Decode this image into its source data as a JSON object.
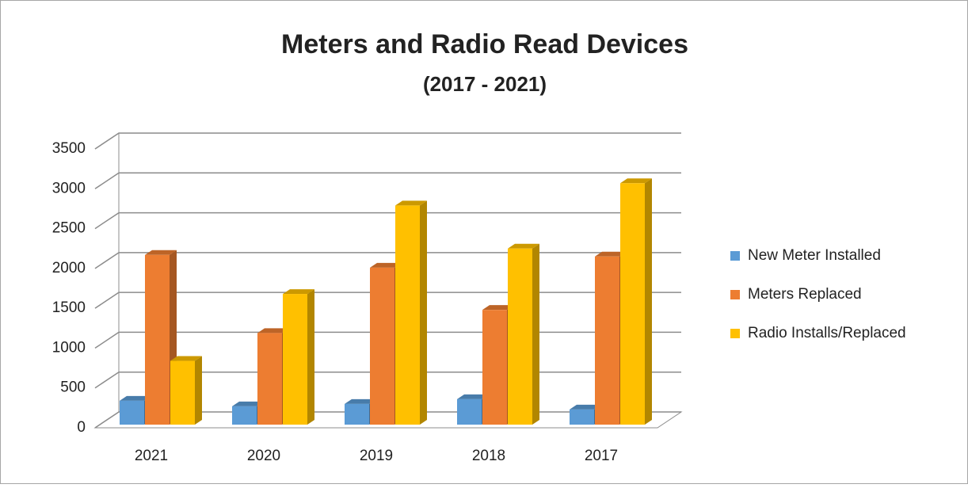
{
  "chart_data": {
    "type": "bar3d",
    "title": "Meters and Radio Read Devices",
    "subtitle": "(2017 - 2021)",
    "categories": [
      "2021",
      "2020",
      "2019",
      "2018",
      "2017"
    ],
    "series": [
      {
        "name": "New Meter Installed",
        "color": "#5b9bd5",
        "values": [
          300,
          230,
          260,
          320,
          190
        ]
      },
      {
        "name": "Meters Replaced",
        "color": "#ed7d31",
        "values": [
          2130,
          1150,
          1970,
          1440,
          2110
        ]
      },
      {
        "name": "Radio Installs/Replaced",
        "color": "#ffc000",
        "values": [
          800,
          1640,
          2750,
          2210,
          3030
        ]
      }
    ],
    "ylim": [
      0,
      3500
    ],
    "yticks": [
      0,
      500,
      1000,
      1500,
      2000,
      2500,
      3000,
      3500
    ],
    "grid": true,
    "legend": "right"
  }
}
